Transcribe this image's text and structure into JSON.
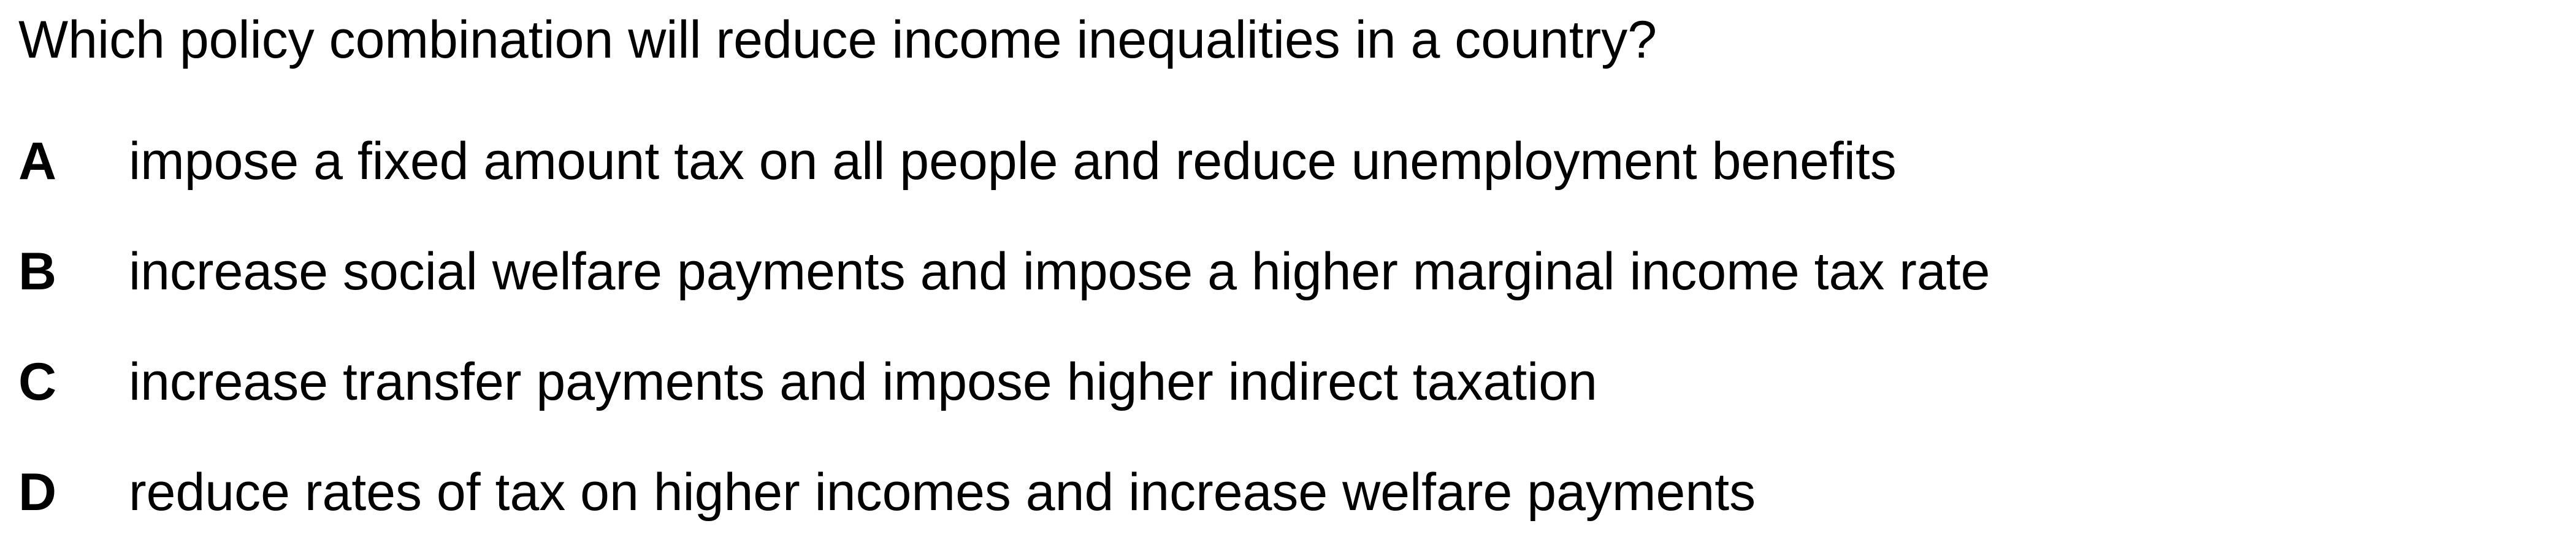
{
  "question": "Which policy combination will reduce income inequalities in a country?",
  "options": [
    {
      "letter": "A",
      "text": "impose a fixed amount tax on all people and reduce unemployment benefits"
    },
    {
      "letter": "B",
      "text": "increase social welfare payments and impose a higher marginal income tax rate"
    },
    {
      "letter": "C",
      "text": "increase transfer payments and impose higher indirect taxation"
    },
    {
      "letter": "D",
      "text": "reduce rates of tax on higher incomes and increase welfare payments"
    }
  ]
}
